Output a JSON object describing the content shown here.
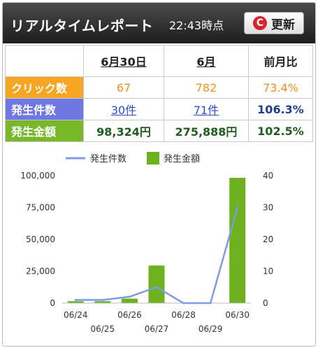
{
  "header": {
    "title": "リアルタイムレポート",
    "time": "22:43時点",
    "refresh_label": "更新",
    "refresh_icon": "C"
  },
  "table": {
    "columns": [
      "6月30日",
      "6月",
      "前月比"
    ],
    "rows": [
      {
        "label": "クリック数",
        "day": "67",
        "month": "782",
        "ratio": "73.4%"
      },
      {
        "label": "発生件数",
        "day": "30件",
        "month": "71件",
        "ratio": "106.3%"
      },
      {
        "label": "発生金額",
        "day": "98,324円",
        "month": "275,888円",
        "ratio": "102.5%"
      }
    ]
  },
  "colors": {
    "line": "#7f9be6",
    "bar": "#6db11f"
  },
  "chart_data": {
    "type": "bar",
    "categories": [
      "06/24",
      "06/25",
      "06/26",
      "06/27",
      "06/28",
      "06/29",
      "06/30"
    ],
    "series": [
      {
        "name": "発生金額",
        "type": "bar",
        "axis": "left",
        "values": [
          1500,
          1500,
          3500,
          29500,
          0,
          0,
          98324
        ]
      },
      {
        "name": "発生件数",
        "type": "line",
        "axis": "right",
        "values": [
          1,
          1,
          2,
          5,
          0,
          0,
          30
        ]
      }
    ],
    "ylim_left": [
      0,
      100000
    ],
    "yticks_left": [
      "0",
      "25,000",
      "50,000",
      "75,000",
      "100,000"
    ],
    "ylim_right": [
      0,
      40
    ],
    "yticks_right": [
      "0",
      "10",
      "20",
      "30",
      "40"
    ],
    "legend_position": "top"
  }
}
